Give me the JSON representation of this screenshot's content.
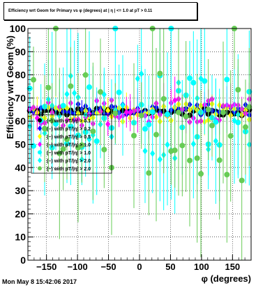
{
  "title": "Efficiency wrt Geom for Primary vs φ (degrees) at | η | <= 1.0 at pT > 0.11",
  "timestamp": "Mon May  8 15:42:06 2017",
  "chart_data": {
    "type": "scatter",
    "xlabel": "φ (degrees)",
    "ylabel": "Efficiency wrt Geom (%)",
    "xlim": [
      -180,
      180
    ],
    "ylim": [
      0,
      100
    ],
    "x_ticks": [
      -150,
      -100,
      -50,
      0,
      50,
      100,
      150
    ],
    "x_tick_labels": [
      "−150",
      "−100",
      "−50",
      "0",
      "50",
      "100",
      "150"
    ],
    "y_ticks": [
      0,
      10,
      20,
      30,
      40,
      50,
      60,
      70,
      80,
      90,
      100
    ],
    "y_tick_labels": [
      "0",
      "10",
      "20",
      "30",
      "40",
      "50",
      "60",
      "70",
      "80",
      "90",
      "100"
    ],
    "grid": true,
    "legend_position": "left, overlapping the data",
    "series": [
      {
        "name": "(−) with pT/|η| > 0.1",
        "color": "#000000",
        "marker": "circle",
        "center": 64,
        "spread": 1.5,
        "error": 2
      },
      {
        "name": "(−) with pT/|η| > 0.2",
        "color": "#0000ff",
        "marker": "diamond",
        "center": 65,
        "spread": 2.5,
        "error": 3
      },
      {
        "name": "(−) with pT/|η| > 0.5",
        "color": "#ffff00",
        "marker": "diamond",
        "center": 63.5,
        "spread": 4,
        "error": 5
      },
      {
        "name": "(−) with pT/|η| > 1.0",
        "color": "#ff00ff",
        "marker": "diamond",
        "center": 64,
        "spread": 6,
        "error": 7
      },
      {
        "name": "(−) with pT/|η| > 1.0",
        "color": "#00ffff",
        "marker": "circle",
        "center": 64,
        "spread": 16,
        "error": 18
      },
      {
        "name": "(−) with pT/|η| > 2.0",
        "color": "#00ffff",
        "marker": "diamond",
        "center": 63,
        "spread": 20,
        "error": 22
      },
      {
        "name": "(−) with pT/|η| > 2.0",
        "color": "#66cc55",
        "marker": "circle",
        "center": 58,
        "spread": 24,
        "error": 25
      }
    ]
  }
}
